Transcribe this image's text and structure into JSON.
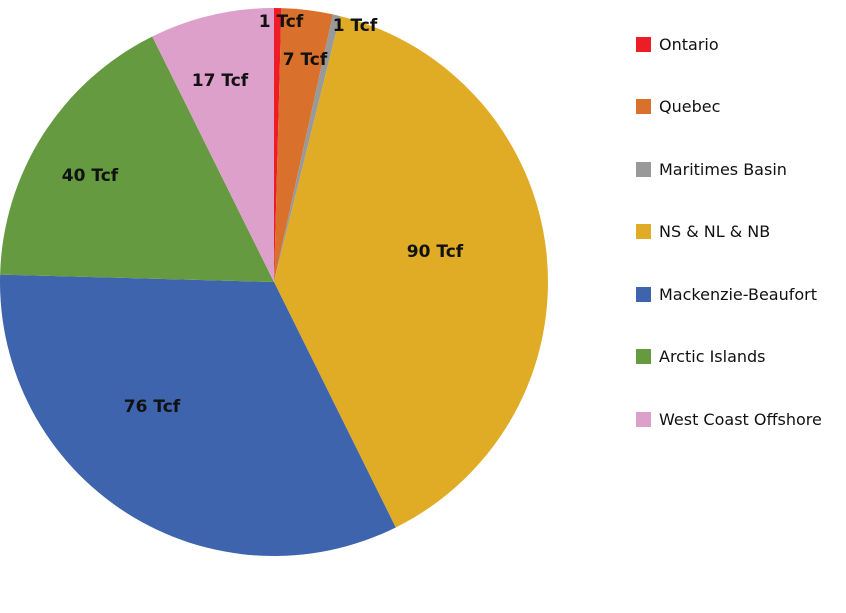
{
  "chart_data": {
    "type": "pie",
    "title": "",
    "unit": "Tcf",
    "categories": [
      "Ontario",
      "Quebec",
      "Maritimes Basin",
      "NS & NL & NB",
      "Mackenzie-Beaufort",
      "Arctic Islands",
      "West Coast Offshore"
    ],
    "values": [
      1,
      7,
      1,
      90,
      76,
      40,
      17
    ],
    "data_labels": [
      "1 Tcf",
      "7 Tcf",
      "1 Tcf",
      "90 Tcf",
      "76 Tcf",
      "40 Tcf",
      "17 Tcf"
    ],
    "colors": [
      "#ee1c25",
      "#d9702b",
      "#999999",
      "#e0ac26",
      "#3d64ad",
      "#659a41",
      "#dda0cb"
    ],
    "start_angle_deg": 0,
    "direction": "clockwise",
    "legend_position": "right"
  },
  "legend": {
    "items": [
      {
        "label": "Ontario",
        "color": "#ee1c25"
      },
      {
        "label": "Quebec",
        "color": "#d9702b"
      },
      {
        "label": "Maritimes Basin",
        "color": "#999999"
      },
      {
        "label": "NS & NL & NB",
        "color": "#e0ac26"
      },
      {
        "label": "Mackenzie-Beaufort",
        "color": "#3d64ad"
      },
      {
        "label": "Arctic Islands",
        "color": "#659a41"
      },
      {
        "label": "West Coast Offshore",
        "color": "#dda0cb"
      }
    ]
  }
}
